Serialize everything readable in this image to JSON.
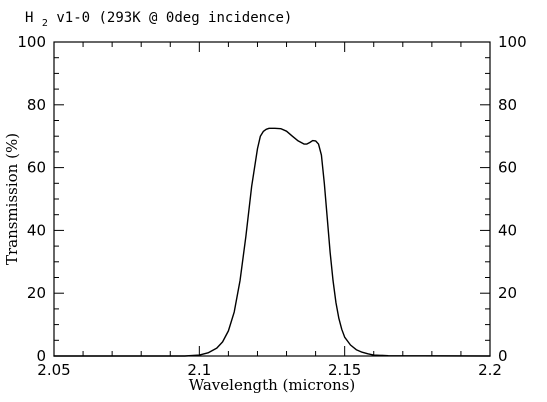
{
  "chart_data": {
    "type": "line",
    "title": {
      "main": "H",
      "sub": "2",
      "rest": "v1-0 (293K @ 0deg incidence)"
    },
    "xlabel": "Wavelength (microns)",
    "ylabel": "Transmission (%)",
    "xlim": [
      2.05,
      2.2
    ],
    "ylim": [
      0,
      100
    ],
    "x_ticks": [
      2.05,
      2.1,
      2.15,
      2.2
    ],
    "x_tick_labels": [
      "2.05",
      "2.1",
      "2.15",
      "2.2"
    ],
    "y_ticks": [
      0,
      20,
      40,
      60,
      80,
      100
    ],
    "y_tick_labels": [
      "0",
      "20",
      "40",
      "60",
      "80",
      "100"
    ],
    "grid": false,
    "series": [
      {
        "color": "#000000",
        "x": [
          2.05,
          2.095,
          2.1,
          2.103,
          2.106,
          2.108,
          2.11,
          2.112,
          2.114,
          2.116,
          2.118,
          2.12,
          2.121,
          2.122,
          2.123,
          2.124,
          2.126,
          2.128,
          2.13,
          2.132,
          2.134,
          2.136,
          2.137,
          2.138,
          2.139,
          2.14,
          2.141,
          2.142,
          2.143,
          2.144,
          2.145,
          2.146,
          2.147,
          2.148,
          2.149,
          2.15,
          2.152,
          2.154,
          2.156,
          2.158,
          2.16,
          2.165,
          2.2
        ],
        "y": [
          0,
          0,
          0.3,
          1.0,
          2.5,
          4.5,
          8.0,
          14.0,
          24.0,
          38.0,
          54.0,
          66.0,
          70.0,
          71.5,
          72.2,
          72.5,
          72.5,
          72.4,
          71.6,
          70.0,
          68.5,
          67.5,
          67.5,
          68.0,
          68.6,
          68.5,
          67.5,
          64.0,
          55.0,
          44.0,
          33.0,
          24.0,
          17.0,
          12.0,
          8.5,
          6.0,
          3.5,
          2.0,
          1.2,
          0.7,
          0.3,
          0.1,
          0
        ]
      }
    ]
  }
}
